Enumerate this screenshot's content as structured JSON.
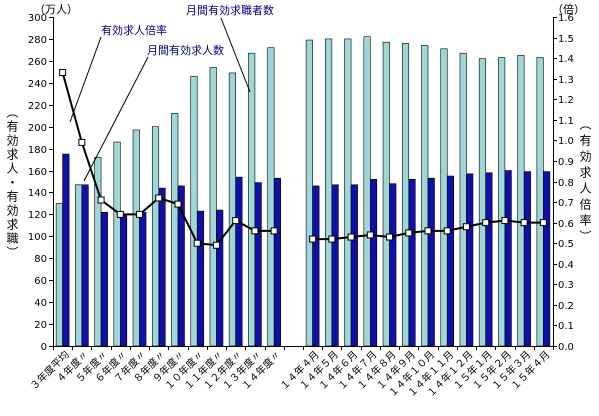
{
  "chart_data": {
    "type": "bar",
    "categories": [
      "３年度平均",
      "４年度〃",
      "５年度〃",
      "６年度〃",
      "７年度〃",
      "８年度〃",
      "９年度〃",
      "１０年度〃",
      "１１年度〃",
      "１２年度〃",
      "１３年度〃",
      "１４年度〃",
      "",
      "１４年４月",
      "１４年５月",
      "１４年６月",
      "１４年７月",
      "１４年８月",
      "１４年９月",
      "１４年１０月",
      "１４年１１月",
      "１４年１２月",
      "１５年１月",
      "１５年２月",
      "１５年３月",
      "１５年４月"
    ],
    "series": [
      {
        "name": "月間有効求職者数",
        "type": "bar",
        "axis": "left",
        "color": "#9fd6d6",
        "values": [
          130,
          147,
          172,
          186,
          197,
          200,
          212,
          246,
          254,
          249,
          267,
          272,
          null,
          279,
          280,
          280,
          282,
          277,
          276,
          274,
          271,
          267,
          262,
          263,
          265,
          263
        ]
      },
      {
        "name": "月間有効求人数",
        "type": "bar",
        "axis": "left",
        "color": "#1010a8",
        "values": [
          175,
          147,
          122,
          119,
          122,
          144,
          146,
          123,
          124,
          154,
          149,
          153,
          null,
          146,
          147,
          147,
          152,
          148,
          152,
          153,
          155,
          157,
          158,
          160,
          159,
          159
        ]
      },
      {
        "name": "有効求人倍率",
        "type": "line",
        "axis": "right",
        "color": "#000000",
        "marker_color": "#ffffff",
        "values": [
          1.33,
          0.99,
          0.71,
          0.64,
          0.64,
          0.72,
          0.69,
          0.5,
          0.49,
          0.61,
          0.56,
          0.56,
          null,
          0.52,
          0.52,
          0.53,
          0.54,
          0.53,
          0.55,
          0.56,
          0.56,
          0.58,
          0.6,
          0.61,
          0.6,
          0.6
        ]
      }
    ],
    "y_left": {
      "unit": "（万人）",
      "label": "（有効求人・有効求職）",
      "range": [
        0,
        300
      ],
      "ticks": [
        "0",
        "20",
        "40",
        "60",
        "80",
        "100",
        "120",
        "140",
        "160",
        "180",
        "200",
        "220",
        "240",
        "260",
        "280",
        "300"
      ]
    },
    "y_right": {
      "unit": "（倍）",
      "label": "（有効求人倍率）",
      "range": [
        0,
        1.6
      ],
      "ticks": [
        "0.0",
        "0.1",
        "0.2",
        "0.3",
        "0.4",
        "0.5",
        "0.6",
        "0.7",
        "0.8",
        "0.9",
        "1.0",
        "1.1",
        "1.2",
        "1.3",
        "1.4",
        "1.5",
        "1.6"
      ]
    },
    "annotation_color": "#000080",
    "grid": false,
    "legend": "callouts"
  }
}
